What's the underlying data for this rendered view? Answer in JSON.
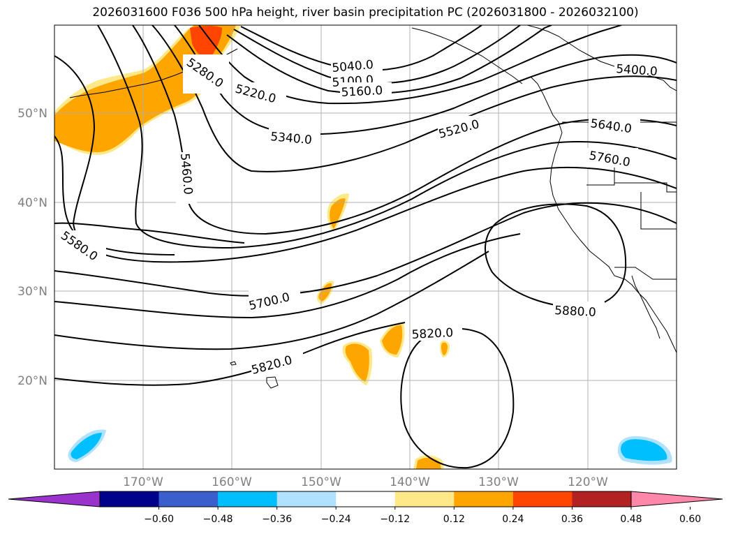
{
  "title": "2026031600 F036 500 hPa height, river basin precipitation PC (2026031800 - 2026032100)",
  "lat_labels": [
    "50°N",
    "40°N",
    "30°N",
    "20°N"
  ],
  "lon_labels": [
    "170°W",
    "160°W",
    "150°W",
    "140°W",
    "130°W",
    "120°W"
  ],
  "contour_labels": [
    "5040.0",
    "5100.0",
    "5160.0",
    "5220.0",
    "5280.0",
    "5340.0",
    "5400.0",
    "5460.0",
    "5520.0",
    "5580.0",
    "5640.0",
    "5700.0",
    "5760.0",
    "5820.0",
    "5820.0",
    "5880.0"
  ],
  "colorbar": {
    "ticks": [
      "−0.60",
      "−0.48",
      "−0.36",
      "−0.24",
      "−0.12",
      "0.12",
      "0.24",
      "0.36",
      "0.48",
      "0.60"
    ],
    "colors": [
      "#9933cc",
      "#00008b",
      "#3a5fcd",
      "#00bfff",
      "#b0e2ff",
      "#ffffff",
      "#ffe888",
      "#ffa500",
      "#ff4500",
      "#b22222",
      "#ff88aa"
    ]
  }
}
